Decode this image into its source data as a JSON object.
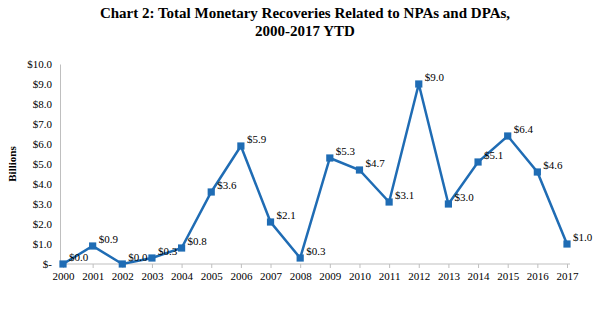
{
  "chart_data": {
    "type": "line",
    "title": [
      "Chart 2: Total Monetary Recoveries Related to NPAs and DPAs,",
      "2000-2017 YTD"
    ],
    "y_label": "Billions",
    "categories": [
      "2000",
      "2001",
      "2002",
      "2003",
      "2004",
      "2005",
      "2006",
      "2007",
      "2008",
      "2009",
      "2010",
      "2011",
      "2012",
      "2013",
      "2014",
      "2015",
      "2016",
      "2017"
    ],
    "values": [
      0.0,
      0.9,
      0.0,
      0.3,
      0.8,
      3.6,
      5.9,
      2.1,
      0.3,
      5.3,
      4.7,
      3.1,
      9.0,
      3.0,
      5.1,
      6.4,
      4.6,
      1.0
    ],
    "value_labels": [
      "$0.0",
      "$0.9",
      "$0.0",
      "$0.3",
      "$0.8",
      "$3.6",
      "$5.9",
      "$2.1",
      "$0.3",
      "$5.3",
      "$4.7",
      "$3.1",
      "$9.0",
      "$3.0",
      "$5.1",
      "$6.4",
      "$4.6",
      "$1.0"
    ],
    "color": "#1f6cb4",
    "marker": "square",
    "ylim": [
      0,
      10
    ],
    "yticks": [
      {
        "value": 0,
        "label": "$-"
      },
      {
        "value": 1,
        "label": "$1.0"
      },
      {
        "value": 2,
        "label": "$2.0"
      },
      {
        "value": 3,
        "label": "$3.0"
      },
      {
        "value": 4,
        "label": "$4.0"
      },
      {
        "value": 5,
        "label": "$5.0"
      },
      {
        "value": 6,
        "label": "$6.0"
      },
      {
        "value": 7,
        "label": "$7.0"
      },
      {
        "value": 8,
        "label": "$8.0"
      },
      {
        "value": 9,
        "label": "$9.0"
      },
      {
        "value": 10,
        "label": "$10.0"
      }
    ],
    "grid": false,
    "data_labels": true
  }
}
